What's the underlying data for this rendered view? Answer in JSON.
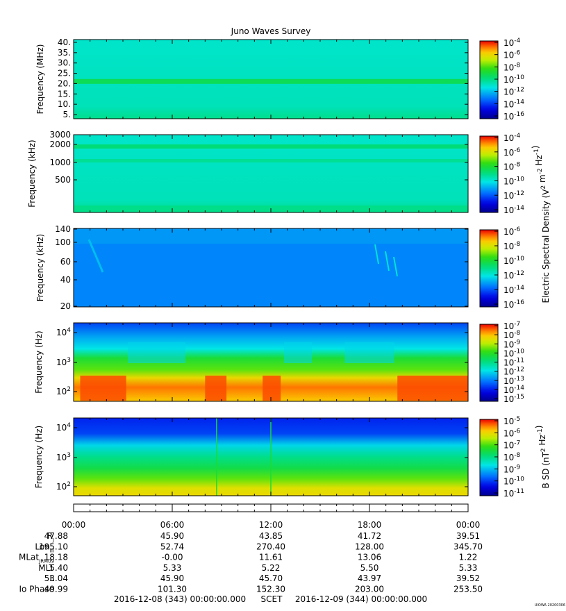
{
  "title": "Juno Waves Survey",
  "colors": {
    "low": "#0000c8",
    "mid": "#00e000",
    "high": "#ff0000"
  },
  "chart_data": [
    {
      "type": "heatmap",
      "ylabel": "Frequency (MHz)",
      "yticks": [
        "40.",
        "35.",
        "30.",
        "25.",
        "20.",
        "15.",
        "10.",
        "5."
      ],
      "ylim": [
        3.5,
        41
      ],
      "cbar_ticks": [
        "10^-4",
        "10^-6",
        "10^-8",
        "10^-10",
        "10^-12",
        "10^-14",
        "10^-16"
      ],
      "cbar_label": "",
      "description_free": true,
      "base_level": 0.6,
      "band_at": [
        21
      ],
      "band_level": 0.32
    },
    {
      "type": "heatmap",
      "ylabel": "Frequency (kHz)",
      "yticks": [
        "3000",
        "2000",
        "1000",
        "500"
      ],
      "cbar_ticks": [
        "10^-4",
        "10^-6",
        "10^-8",
        "10^-10",
        "10^-12",
        "10^-14"
      ],
      "cbar_label": "Electric Spectral Density (V^2 m^-2 Hz^-1)",
      "base_level": 0.6,
      "band_at": [
        1800,
        1100
      ],
      "band_level": 0.5
    },
    {
      "type": "heatmap",
      "ylabel": "Frequency (kHz)",
      "yticks": [
        "140",
        "100",
        "60",
        "40",
        "20"
      ],
      "cbar_ticks": [
        "10^-6",
        "10^-8",
        "10^-10",
        "10^-12",
        "10^-14",
        "10^-16"
      ],
      "cbar_label": "",
      "base_level": 0.82
    },
    {
      "type": "heatmap",
      "ylabel": "Frequency (Hz)",
      "yticks": [
        "10^4",
        "10^3",
        "10^2"
      ],
      "cbar_ticks": [
        "10^-7",
        "10^-8",
        "10^-9",
        "10^-10",
        "10^-11",
        "10^-12",
        "10^-13",
        "10^-14",
        "10^-15"
      ],
      "cbar_label": "",
      "hot_intervals_hours": [
        [
          0.4,
          3.2
        ],
        [
          8.0,
          9.3
        ],
        [
          11.5,
          12.6
        ],
        [
          19.7,
          24.0
        ]
      ]
    },
    {
      "type": "heatmap",
      "ylabel": "Frequency (Hz)",
      "yticks": [
        "10^4",
        "10^3",
        "10^2"
      ],
      "cbar_ticks": [
        "10^-5",
        "10^-6",
        "10^-7",
        "10^-8",
        "10^-9",
        "10^-10",
        "10^-11"
      ],
      "cbar_label": "B SD (nT^2 Hz^-1)"
    }
  ],
  "ephemeris": {
    "times": [
      "00:00",
      "06:00",
      "12:00",
      "18:00",
      "00:00"
    ],
    "rows": [
      {
        "label": "R",
        "sub": "J",
        "values": [
          "47.88",
          "45.90",
          "43.85",
          "41.72",
          "39.51"
        ]
      },
      {
        "label": "Lon",
        "sub": "III",
        "values": [
          "195.10",
          "52.74",
          "270.40",
          "128.00",
          "345.70"
        ]
      },
      {
        "label": "MLat",
        "sub": "JRM09",
        "values": [
          "18.18",
          "-0.00",
          "11.61",
          "13.06",
          "1.22"
        ]
      },
      {
        "label": "MLT",
        "sub": "",
        "values": [
          "5.40",
          "5.33",
          "5.22",
          "5.50",
          "5.33"
        ]
      },
      {
        "label": "L",
        "sub": "",
        "values": [
          "53.04",
          "45.90",
          "45.70",
          "43.97",
          "39.52"
        ]
      },
      {
        "label": "Io Phase",
        "sub": "",
        "values": [
          "49.99",
          "101.30",
          "152.30",
          "203.00",
          "253.50"
        ]
      }
    ],
    "scet_start": "2016-12-08 (343) 00:00:00.000",
    "scet_label": "SCET",
    "scet_end": "2016-12-09 (344) 00:00:00.000"
  },
  "footer_tag": "UIOWA 20200306"
}
